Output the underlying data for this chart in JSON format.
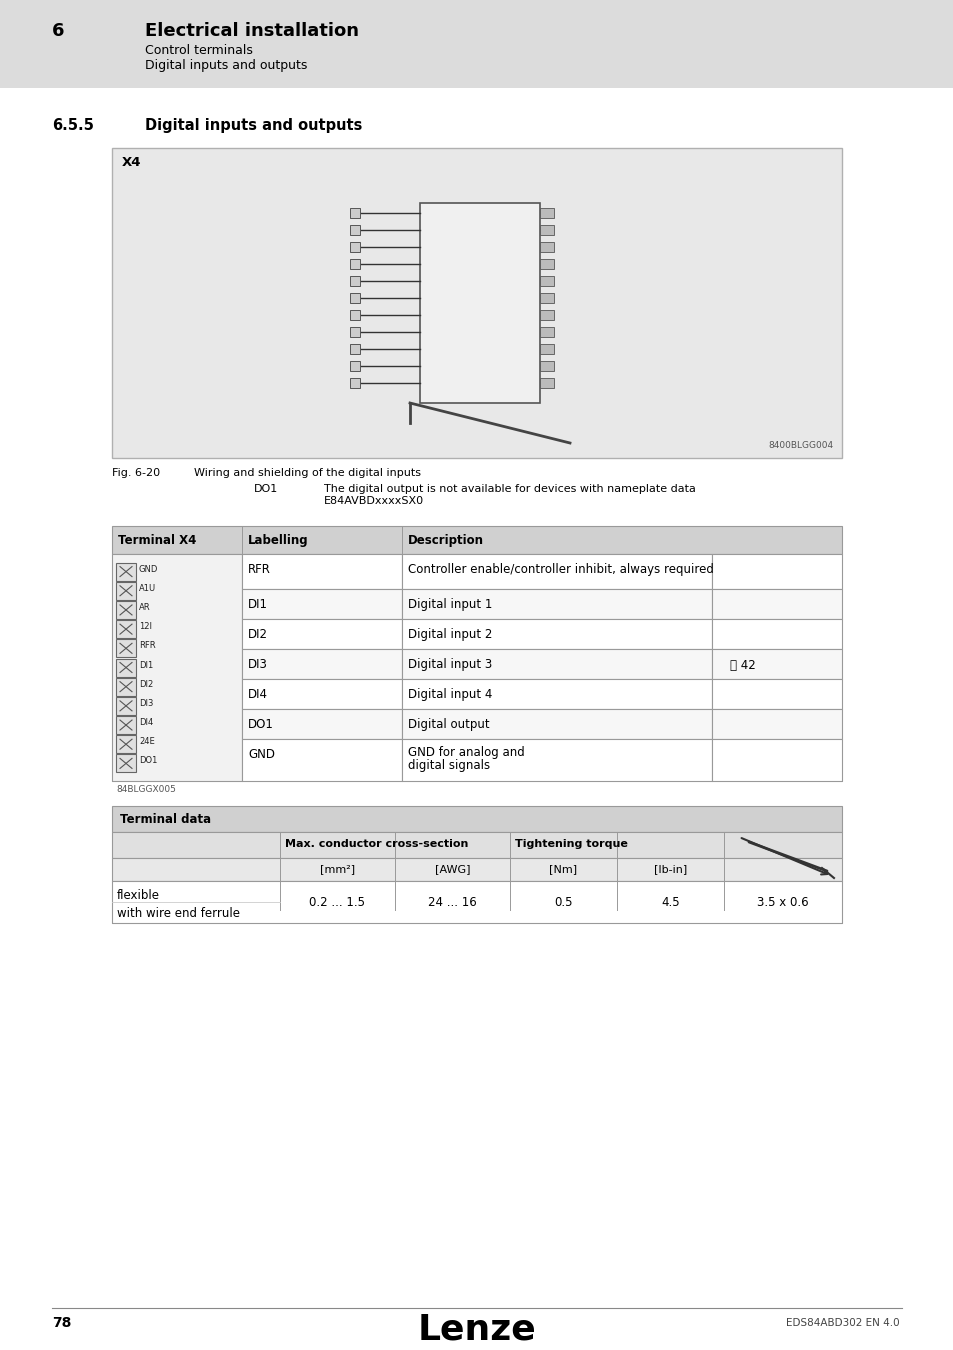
{
  "page_bg": "#ffffff",
  "header_bg": "#dcdcdc",
  "header_num": "6",
  "header_title": "Electrical installation",
  "header_sub1": "Control terminals",
  "header_sub2": "Digital inputs and outputs",
  "section_num": "6.5.5",
  "section_title": "Digital inputs and outputs",
  "x4_label": "X4",
  "fig_label": "Fig. 6-20",
  "fig_caption": "Wiring and shielding of the digital inputs",
  "fig_note_label": "DO1",
  "fig_note_text": "The digital output is not available for devices with nameplate data\nE84AVBDxxxxSX0",
  "fig_code": "8400BLGG004",
  "table1_header": [
    "Terminal X4",
    "Labelling",
    "Description"
  ],
  "table1_rows": [
    [
      "RFR",
      "Controller enable/controller inhibit, always required"
    ],
    [
      "DI1",
      "Digital input 1"
    ],
    [
      "DI2",
      "Digital input 2"
    ],
    [
      "DI3",
      "Digital input 3"
    ],
    [
      "DI4",
      "Digital input 4"
    ],
    [
      "DO1",
      "Digital output"
    ],
    [
      "GND",
      "GND for analog and\ndigital signals"
    ]
  ],
  "terminal_labels": [
    "GND",
    "A1U",
    "AR",
    "12I",
    "RFR",
    "DI1",
    "DI2",
    "DI3",
    "DI4",
    "24E",
    "DO1"
  ],
  "terminal_code": "84BLGGX005",
  "table2_title": "Terminal data",
  "table2_header1": "Max. conductor cross-section",
  "table2_header2": "Tightening torque",
  "table2_sub": [
    "[mm²]",
    "[AWG]",
    "[Nm]",
    "[lb-in]"
  ],
  "table2_row_label1": "flexible",
  "table2_row_label2": "with wire end ferrule",
  "table2_values": [
    "0.2 ... 1.5",
    "24 ... 16",
    "0.5",
    "4.5",
    "3.5 x 0.6"
  ],
  "footer_page": "78",
  "footer_brand": "Lenze",
  "footer_doc": "EDS84ABD302 EN 4.0"
}
